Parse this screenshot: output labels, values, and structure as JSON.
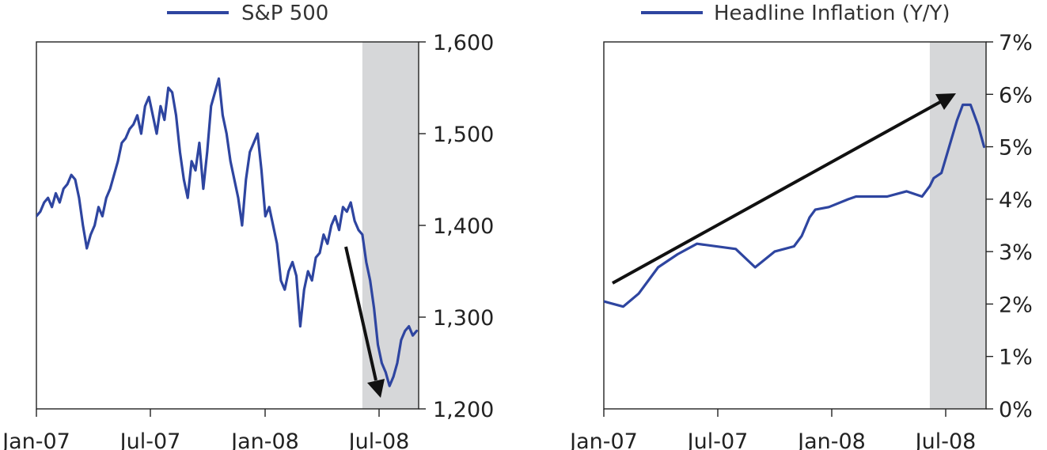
{
  "chart_data": [
    {
      "type": "line",
      "legend": "S&P 500",
      "x_ticks": [
        "Jan-07",
        "Jul-07",
        "Jan-08",
        "Jul-08"
      ],
      "y_ticks": [
        "1,600",
        "1,500",
        "1,400",
        "1,300",
        "1,200"
      ],
      "y_axis_side": "right",
      "ylim": [
        1200,
        1600
      ],
      "xlim": [
        0,
        19.7
      ],
      "shaded_region": [
        16.8,
        19.7
      ],
      "color": "#2e45a0",
      "shade_color": "#d6d7d9",
      "series": [
        {
          "x": [
            0,
            0.2,
            0.4,
            0.6,
            0.8,
            1.0,
            1.2,
            1.4,
            1.6,
            1.8,
            2.0,
            2.2,
            2.4,
            2.6,
            2.8,
            3.0,
            3.2,
            3.4,
            3.6,
            3.8,
            4.0,
            4.2,
            4.4,
            4.6,
            4.8,
            5.0,
            5.2,
            5.4,
            5.6,
            5.8,
            6.0,
            6.2,
            6.4,
            6.6,
            6.8,
            7.0,
            7.2,
            7.4,
            7.6,
            7.8,
            8.0,
            8.2,
            8.4,
            8.6,
            8.8,
            9.0,
            9.2,
            9.4,
            9.6,
            9.8,
            10.0,
            10.2,
            10.4,
            10.6,
            10.8,
            11.0,
            11.2,
            11.4,
            11.6,
            11.8,
            12.0,
            12.2,
            12.4,
            12.6,
            12.8,
            13.0,
            13.2,
            13.4,
            13.6,
            13.8,
            14.0,
            14.2,
            14.4,
            14.6,
            14.8,
            15.0,
            15.2,
            15.4,
            15.6,
            15.8,
            16.0,
            16.2,
            16.4,
            16.6,
            16.8,
            17.0,
            17.2,
            17.4,
            17.6,
            17.8,
            18.0,
            18.2,
            18.4,
            18.6,
            18.8,
            19.0,
            19.2,
            19.4,
            19.6
          ],
          "y": [
            1410,
            1415,
            1425,
            1430,
            1420,
            1435,
            1425,
            1440,
            1445,
            1455,
            1450,
            1430,
            1400,
            1375,
            1390,
            1400,
            1420,
            1410,
            1430,
            1440,
            1455,
            1470,
            1490,
            1495,
            1505,
            1510,
            1520,
            1500,
            1530,
            1540,
            1520,
            1500,
            1530,
            1515,
            1550,
            1545,
            1520,
            1480,
            1450,
            1430,
            1470,
            1460,
            1490,
            1440,
            1480,
            1530,
            1545,
            1560,
            1520,
            1500,
            1470,
            1450,
            1430,
            1400,
            1450,
            1480,
            1490,
            1500,
            1460,
            1410,
            1420,
            1400,
            1380,
            1340,
            1330,
            1350,
            1360,
            1345,
            1290,
            1330,
            1350,
            1340,
            1365,
            1370,
            1390,
            1380,
            1400,
            1410,
            1395,
            1420,
            1415,
            1425,
            1405,
            1395,
            1390,
            1360,
            1340,
            1310,
            1270,
            1250,
            1240,
            1225,
            1235,
            1250,
            1275,
            1285,
            1290,
            1280,
            1285
          ]
        }
      ]
    },
    {
      "type": "line",
      "legend": "Headline Inflation (Y/Y)",
      "x_ticks": [
        "Jan-07",
        "Jul-07",
        "Jan-08",
        "Jul-08"
      ],
      "y_ticks": [
        "7%",
        "6%",
        "5%",
        "4%",
        "3%",
        "2%",
        "1%",
        "0%"
      ],
      "y_axis_side": "right",
      "ylim": [
        0,
        7
      ],
      "xlim": [
        0,
        19.7
      ],
      "shaded_region": [
        16.8,
        19.7
      ],
      "color": "#2e45a0",
      "shade_color": "#d6d7d9",
      "series": [
        {
          "x": [
            0,
            1.0,
            1.8,
            2.8,
            3.8,
            4.8,
            6.8,
            7.8,
            8.8,
            9.8,
            10.2,
            10.6,
            10.9,
            11.6,
            12.6,
            13.0,
            14.6,
            15.6,
            16.4,
            16.8,
            17.0,
            17.4,
            17.8,
            18.2,
            18.5,
            18.9,
            19.3,
            19.6
          ],
          "y": [
            2.05,
            1.95,
            2.2,
            2.7,
            2.95,
            3.15,
            3.05,
            2.7,
            3.0,
            3.1,
            3.3,
            3.65,
            3.8,
            3.85,
            4.0,
            4.05,
            4.05,
            4.15,
            4.05,
            4.25,
            4.4,
            4.5,
            5.0,
            5.5,
            5.8,
            5.8,
            5.4,
            5.0
          ]
        }
      ]
    }
  ]
}
